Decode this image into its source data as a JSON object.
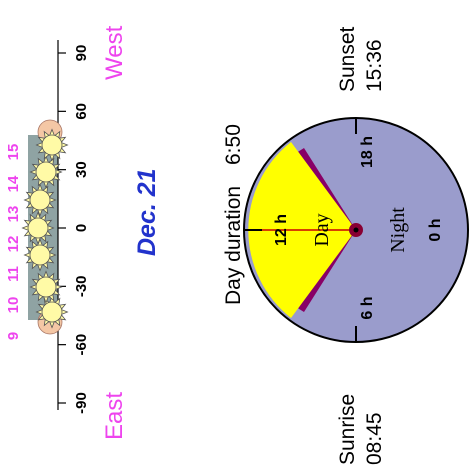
{
  "date": "Dec. 21",
  "directions": {
    "east": "East",
    "west": "West"
  },
  "azimuth_ticks": [
    "-90",
    "-60",
    "-30",
    "0",
    "30",
    "60",
    "90"
  ],
  "hour_labels": [
    "9",
    "10",
    "11",
    "12",
    "13",
    "14",
    "15"
  ],
  "day_duration": {
    "label": "Day duration",
    "value": "6:50"
  },
  "sunrise": {
    "label": "Sunrise",
    "time": "08:45"
  },
  "sunset": {
    "label": "Sunset",
    "time": "15:36"
  },
  "clock": {
    "hour_ticks": [
      "0 h",
      "6 h",
      "12 h",
      "18 h"
    ],
    "day_label": "Day",
    "night_label": "Night"
  },
  "colors": {
    "direction": "#ee44ee",
    "date": "#2233cc",
    "day": "#ffff00",
    "night": "#9a9ccc",
    "twilight": "#880066",
    "sun_edge": "#f4c7a5",
    "sun_face": "#fffaa6"
  }
}
